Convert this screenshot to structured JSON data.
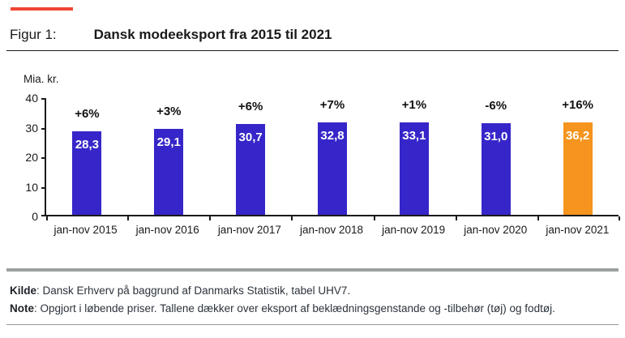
{
  "header": {
    "figure_label": "Figur 1:",
    "title": "Dansk modeeksport fra 2015 til 2021"
  },
  "chart_data": {
    "type": "bar",
    "title": "Dansk modeeksport fra 2015 til 2021",
    "ylabel": "Mia. kr.",
    "xlabel": "",
    "ylim": [
      0,
      40
    ],
    "yticks": [
      0,
      10,
      20,
      30,
      40
    ],
    "grid": false,
    "legend_position": "none",
    "categories": [
      "jan-nov 2015",
      "jan-nov 2016",
      "jan-nov 2017",
      "jan-nov 2018",
      "jan-nov 2019",
      "jan-nov 2020",
      "jan-nov 2021"
    ],
    "values": [
      28.3,
      29.1,
      30.7,
      32.8,
      33.1,
      31.0,
      36.2
    ],
    "value_labels": [
      "28,3",
      "29,1",
      "30,7",
      "32,8",
      "33,1",
      "31,0",
      "36,2"
    ],
    "pct_change_labels": [
      "+6%",
      "+3%",
      "+6%",
      "+7%",
      "+1%",
      "-6%",
      "+16%"
    ],
    "bar_colors": [
      "#3626c9",
      "#3626c9",
      "#3626c9",
      "#3626c9",
      "#3626c9",
      "#3626c9",
      "#f5941e"
    ]
  },
  "footer": {
    "source_label": "Kilde",
    "source_text": ": Dansk Erhverv på baggrund af Danmarks Statistik, tabel UHV7.",
    "note_label": "Note",
    "note_text": ": Opgjort i løbende priser. Tallene dækker over eksport af beklædningsgenstande og -tilbehør (tøj) og fodtøj."
  },
  "colors": {
    "accent_red": "#f04532",
    "bar_blue": "#3626c9",
    "bar_orange": "#f5941e",
    "divider_gray": "#9ba1a1",
    "axis_black": "#1a1a1a"
  }
}
